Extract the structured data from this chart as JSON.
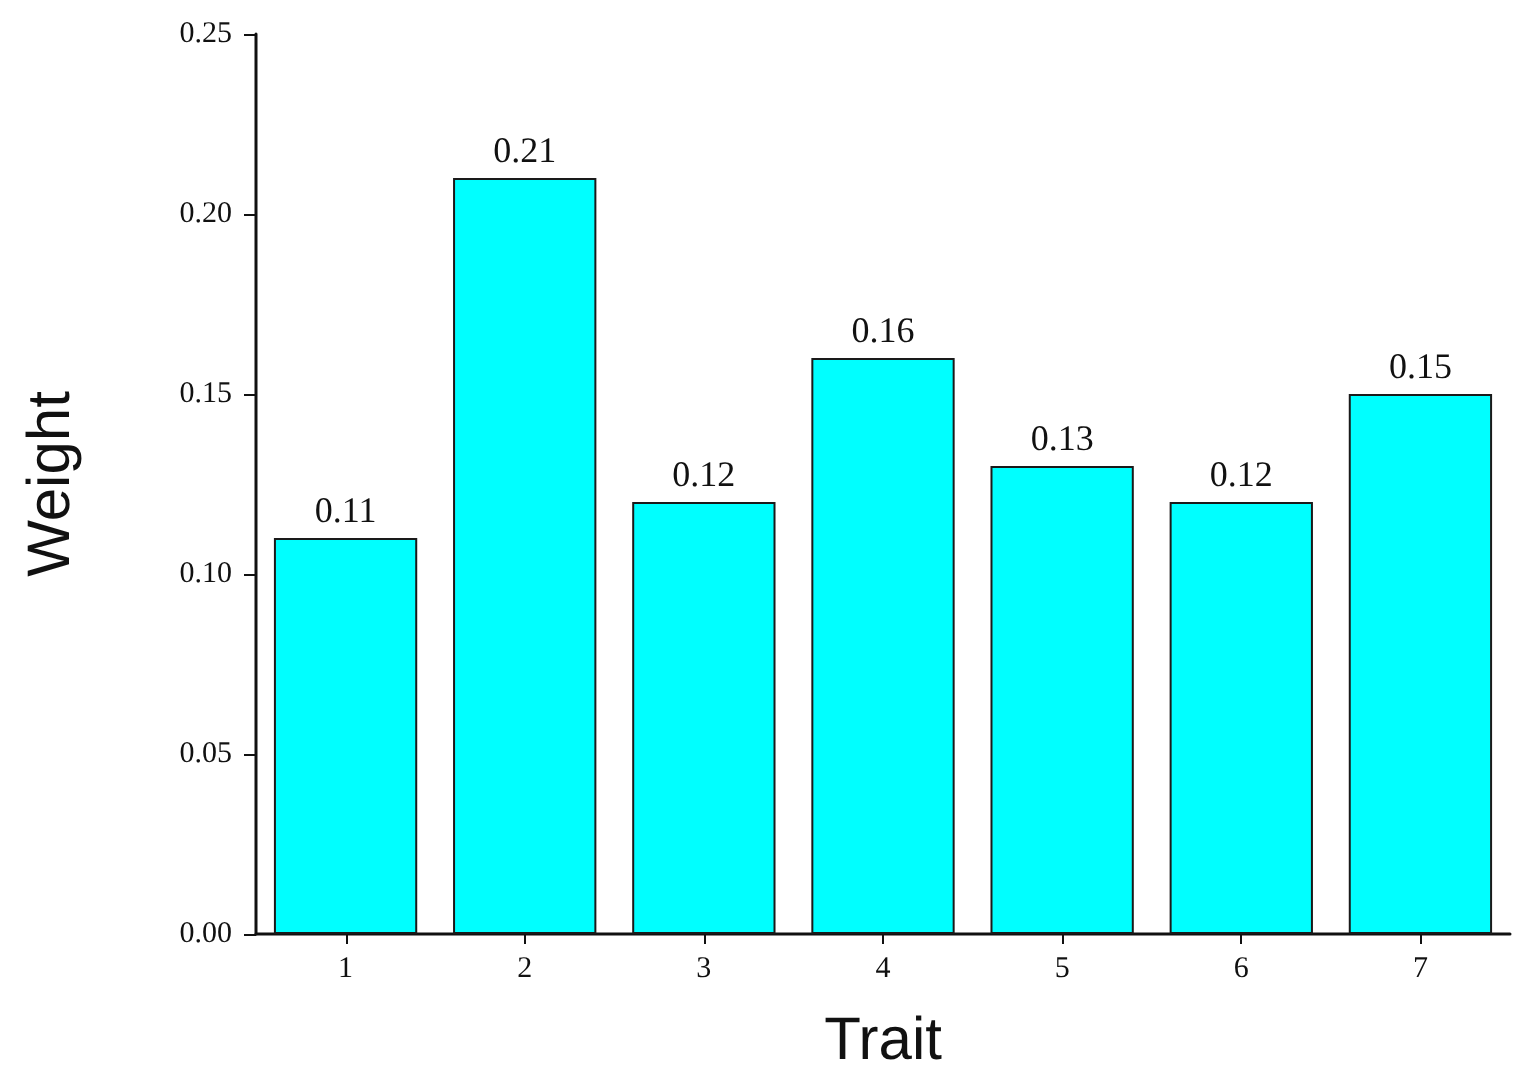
{
  "chart_data": {
    "type": "bar",
    "xlabel": "Trait",
    "ylabel": "Weight",
    "categories": [
      "1",
      "2",
      "3",
      "4",
      "5",
      "6",
      "7"
    ],
    "values": [
      0.11,
      0.21,
      0.12,
      0.16,
      0.13,
      0.12,
      0.15
    ],
    "color": "#00ffff",
    "ylim": [
      0,
      0.25
    ],
    "yticks": [
      {
        "value": 0,
        "label": "0.00"
      },
      {
        "value": 0.05,
        "label": "0.05"
      },
      {
        "value": 0.1,
        "label": "0.10"
      },
      {
        "value": 0.15,
        "label": "0.15"
      },
      {
        "value": 0.2,
        "label": "0.20"
      },
      {
        "value": 0.25,
        "label": "0.25"
      }
    ],
    "data_labels": true,
    "grid": false
  }
}
